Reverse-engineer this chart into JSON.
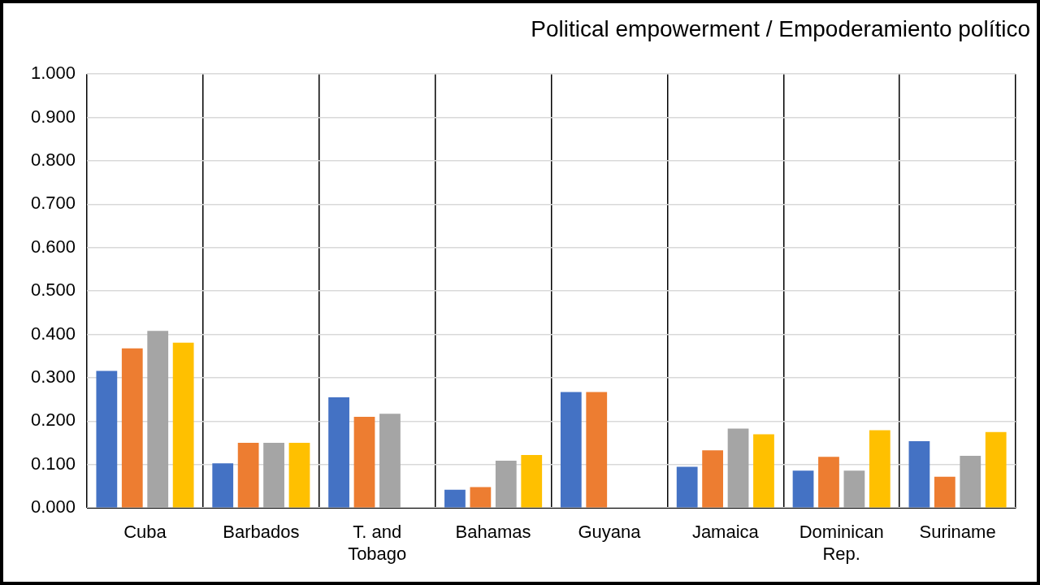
{
  "chart_data": {
    "type": "bar",
    "title": "Political empowerment / Empoderamiento político",
    "categories": [
      "Cuba",
      "Barbados",
      "T. and Tobago",
      "Bahamas",
      "Guyana",
      "Jamaica",
      "Dominican Rep.",
      "Suriname"
    ],
    "series": [
      {
        "color": "#4472c4",
        "values": [
          0.316,
          0.103,
          0.255,
          0.042,
          0.267,
          0.095,
          0.086,
          0.154
        ]
      },
      {
        "color": "#ed7d31",
        "values": [
          0.368,
          0.15,
          0.21,
          0.048,
          0.267,
          0.133,
          0.118,
          0.072
        ]
      },
      {
        "color": "#a5a5a5",
        "values": [
          0.408,
          0.15,
          0.217,
          0.109,
          null,
          0.183,
          0.086,
          0.12
        ]
      },
      {
        "color": "#ffc000",
        "values": [
          0.381,
          0.15,
          null,
          0.122,
          null,
          0.17,
          0.179,
          0.175
        ]
      }
    ],
    "ylim": [
      0,
      1
    ],
    "yticks": [
      {
        "value": 0,
        "label": "0.000"
      },
      {
        "value": 0.1,
        "label": "0.100"
      },
      {
        "value": 0.2,
        "label": "0.200"
      },
      {
        "value": 0.3,
        "label": "0.300"
      },
      {
        "value": 0.4,
        "label": "0.400"
      },
      {
        "value": 0.5,
        "label": "0.500"
      },
      {
        "value": 0.6,
        "label": "0.600"
      },
      {
        "value": 0.7,
        "label": "0.700"
      },
      {
        "value": 0.8,
        "label": "0.800"
      },
      {
        "value": 0.9,
        "label": "0.900"
      },
      {
        "value": 1,
        "label": "1.000"
      }
    ],
    "grid": true
  }
}
